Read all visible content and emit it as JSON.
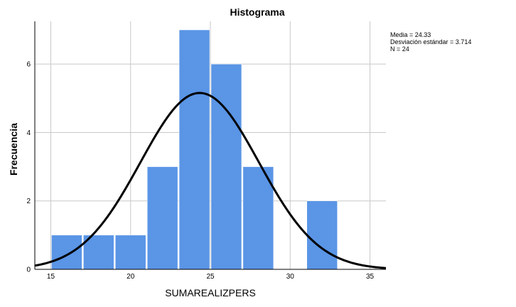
{
  "chart_data": {
    "type": "bar",
    "title": "Histograma",
    "xlabel": "SUMAREALIZPERS",
    "ylabel": "Frecuencia",
    "bins": [
      {
        "start": 15,
        "end": 17,
        "count": 1
      },
      {
        "start": 17,
        "end": 19,
        "count": 1
      },
      {
        "start": 19,
        "end": 21,
        "count": 1
      },
      {
        "start": 21,
        "end": 23,
        "count": 3
      },
      {
        "start": 23,
        "end": 25,
        "count": 7
      },
      {
        "start": 25,
        "end": 27,
        "count": 6
      },
      {
        "start": 27,
        "end": 29,
        "count": 3
      },
      {
        "start": 29,
        "end": 31,
        "count": 0
      },
      {
        "start": 31,
        "end": 33,
        "count": 2
      }
    ],
    "xlim": [
      14,
      36
    ],
    "ylim": [
      0,
      7.25
    ],
    "xticks": [
      "15",
      "20",
      "25",
      "30",
      "35"
    ],
    "yticks": [
      "0",
      "2",
      "4",
      "6"
    ],
    "grid": true,
    "normal_curve": {
      "mean": 24.33,
      "sd": 3.714,
      "n": 24,
      "bin_width": 2
    },
    "colors": {
      "bar": "#5a95e6",
      "bar_edge": "#ffffff",
      "curve": "#000000",
      "grid": "#c8c8c8",
      "axis": "#000000"
    }
  },
  "stats": {
    "media": "Media = 24.33",
    "desviacion": "Desviación estándar = 3.714",
    "n": "N = 24"
  }
}
